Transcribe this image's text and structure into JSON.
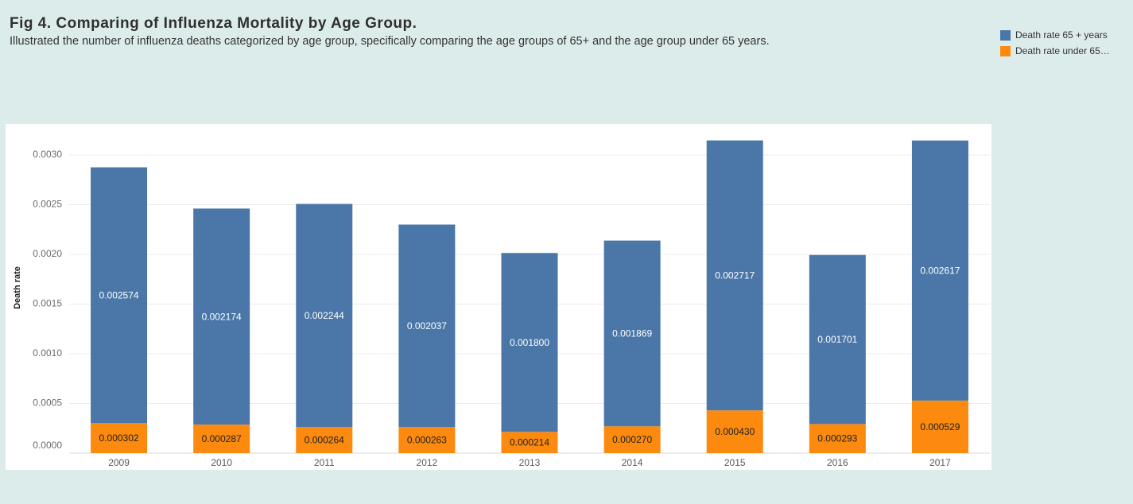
{
  "chart_data": {
    "type": "bar",
    "stacked": true,
    "title": "Fig 4. Comparing of Influenza Mortality by Age Group.",
    "subtitle": "Illustrated the number of influenza deaths categorized by age group, specifically comparing the age groups of 65+ and the age group under 65 years.",
    "ylabel": "Death rate",
    "categories": [
      "2009",
      "2010",
      "2011",
      "2012",
      "2013",
      "2014",
      "2015",
      "2016",
      "2017"
    ],
    "series": [
      {
        "name": "Death rate 65 + years",
        "color": "#4a77a8",
        "label_color": "#ffffff",
        "values": [
          0.002574,
          0.002174,
          0.002244,
          0.002037,
          0.0018,
          0.001869,
          0.002717,
          0.001701,
          0.002617
        ]
      },
      {
        "name": "Death rate under 65…",
        "color": "#fb8a0e",
        "label_color": "#1f1f1f",
        "values": [
          0.000302,
          0.000287,
          0.000264,
          0.000263,
          0.000214,
          0.00027,
          0.00043,
          0.000293,
          0.000529
        ]
      }
    ],
    "yticks": [
      0,
      0.0005,
      0.001,
      0.0015,
      0.002,
      0.0025,
      0.003
    ],
    "ylim": [
      0,
      0.0032
    ],
    "grid": true,
    "data_labels": true,
    "legend_position": "top-right"
  }
}
